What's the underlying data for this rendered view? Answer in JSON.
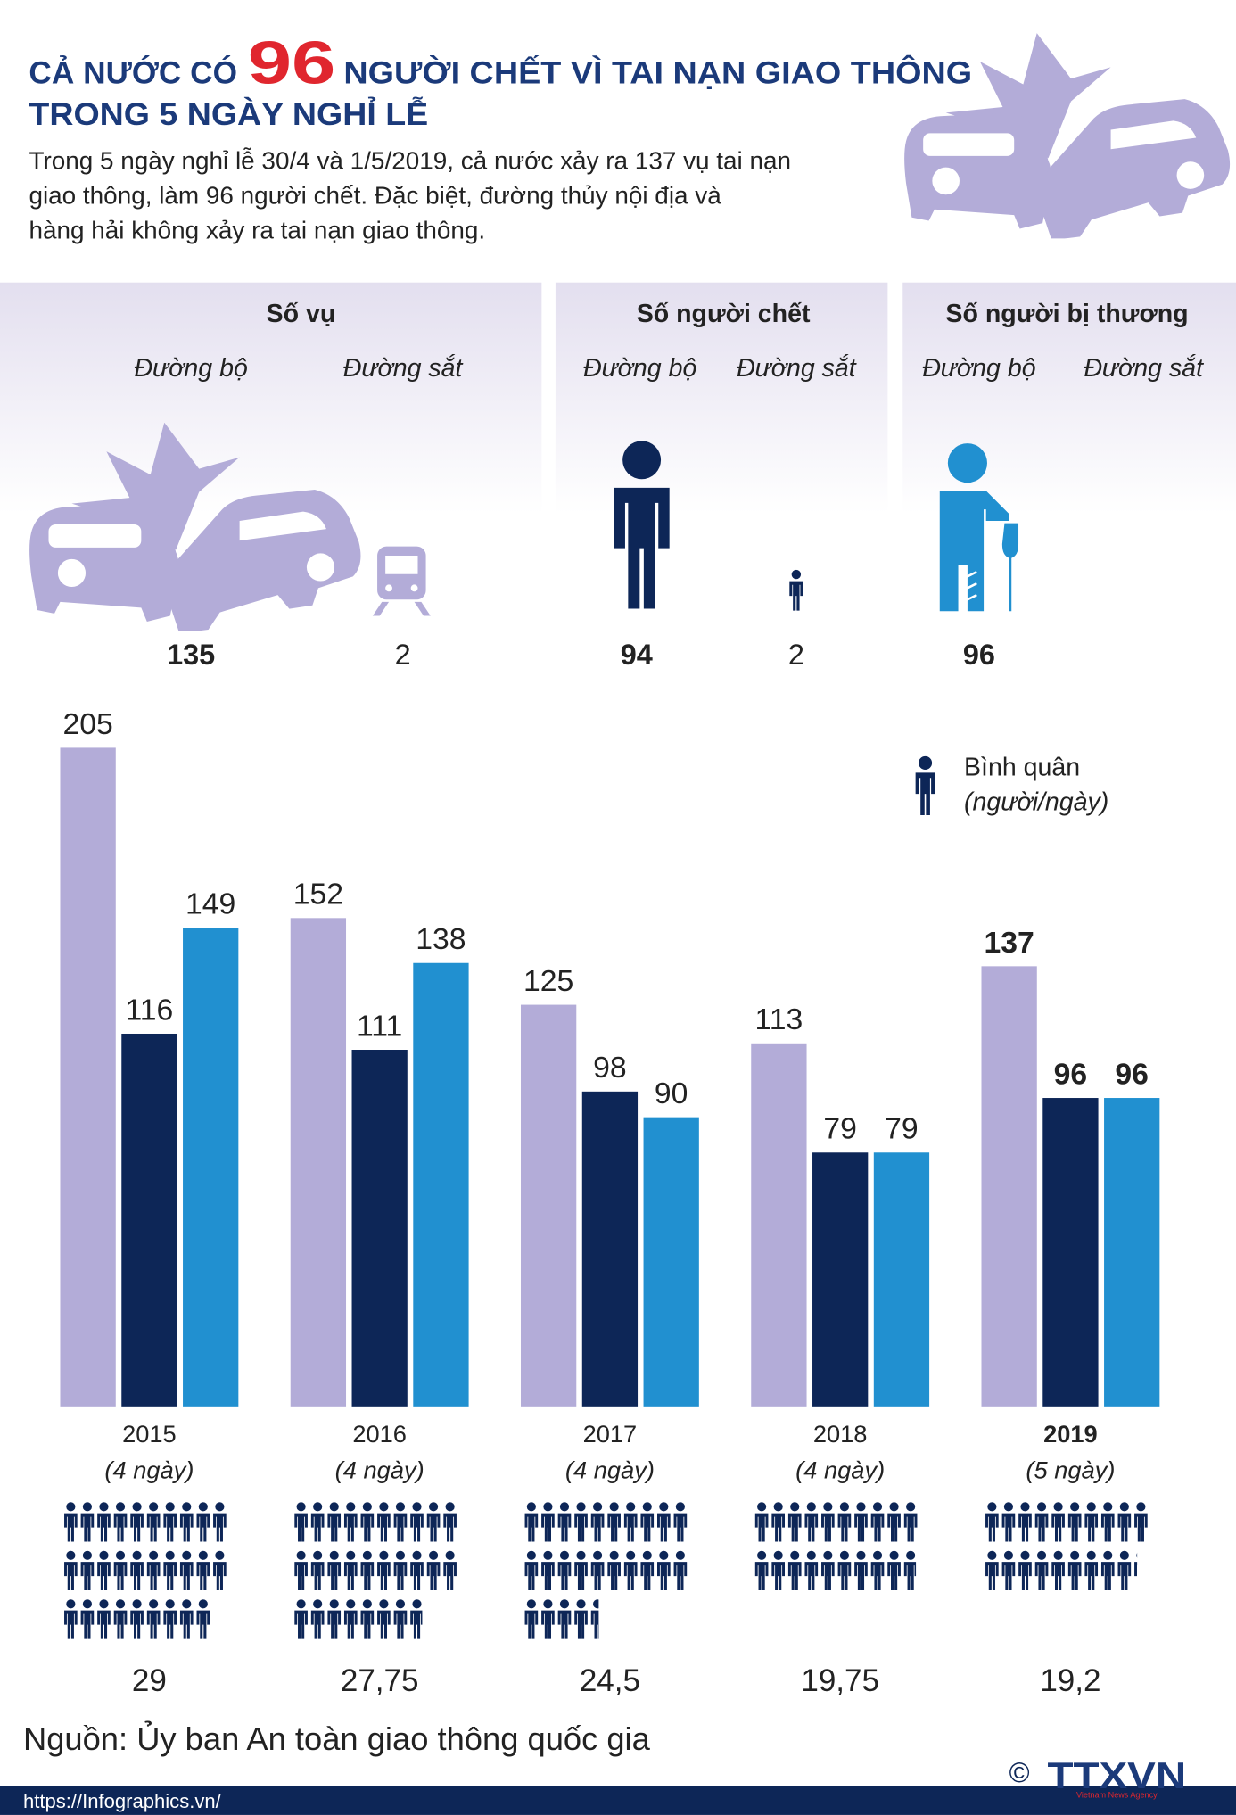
{
  "header": {
    "title_start": "CẢ NƯỚC CÓ",
    "title_number": "96",
    "title_end": "NGƯỜI CHẾT VÌ TAI NẠN GIAO THÔNG",
    "title_line2": "TRONG 5 NGÀY NGHỈ LỄ",
    "description": [
      "Trong 5 ngày nghỉ lễ 30/4 và 1/5/2019, cả nước xảy ra 137 vụ tai nạn",
      "giao thông, làm 96 người chết. Đặc biệt, đường thủy nội địa và",
      "hàng hải không xảy ra tai nạn giao thông."
    ]
  },
  "panels": [
    {
      "title": "Số vụ",
      "items": [
        {
          "label": "Đường bộ",
          "value": 135
        },
        {
          "label": "Đường sắt",
          "value": 2
        }
      ]
    },
    {
      "title": "Số người chết",
      "items": [
        {
          "label": "Đường bộ",
          "value": 94
        },
        {
          "label": "Đường sắt",
          "value": 2
        }
      ]
    },
    {
      "title": "Số người bị thương",
      "items": [
        {
          "label": "Đường bộ",
          "value": 96
        },
        {
          "label": "Đường sắt"
        }
      ]
    }
  ],
  "chart_data": {
    "type": "bar",
    "categories": [
      "2015",
      "2016",
      "2017",
      "2018",
      "2019"
    ],
    "sublabels": [
      "(4 ngày)",
      "(4 ngày)",
      "(4 ngày)",
      "(4 ngày)",
      "(5 ngày)"
    ],
    "series": [
      {
        "color": "#b3acd8",
        "values": [
          205,
          152,
          125,
          113,
          137
        ]
      },
      {
        "color": "#0d2657",
        "values": [
          116,
          111,
          98,
          79,
          96
        ]
      },
      {
        "color": "#2190d0",
        "values": [
          149,
          138,
          90,
          79,
          96
        ]
      }
    ],
    "ylim": [
      0,
      205
    ],
    "average_label": "Bình quân",
    "average_unit": "(người/ngày)",
    "averages": {
      "values": [
        29,
        27.75,
        24.5,
        19.75,
        19.2
      ],
      "value_labels": [
        "29",
        "27,75",
        "24,5",
        "19,75",
        "19,2"
      ]
    }
  },
  "footer": {
    "source": "Nguồn: Ủy ban An toàn giao thông quốc gia",
    "url": "https://Infographics.vn/",
    "copyright": "©",
    "logo": "TTXVN",
    "logo_sub": "Vietnam News Agency"
  }
}
